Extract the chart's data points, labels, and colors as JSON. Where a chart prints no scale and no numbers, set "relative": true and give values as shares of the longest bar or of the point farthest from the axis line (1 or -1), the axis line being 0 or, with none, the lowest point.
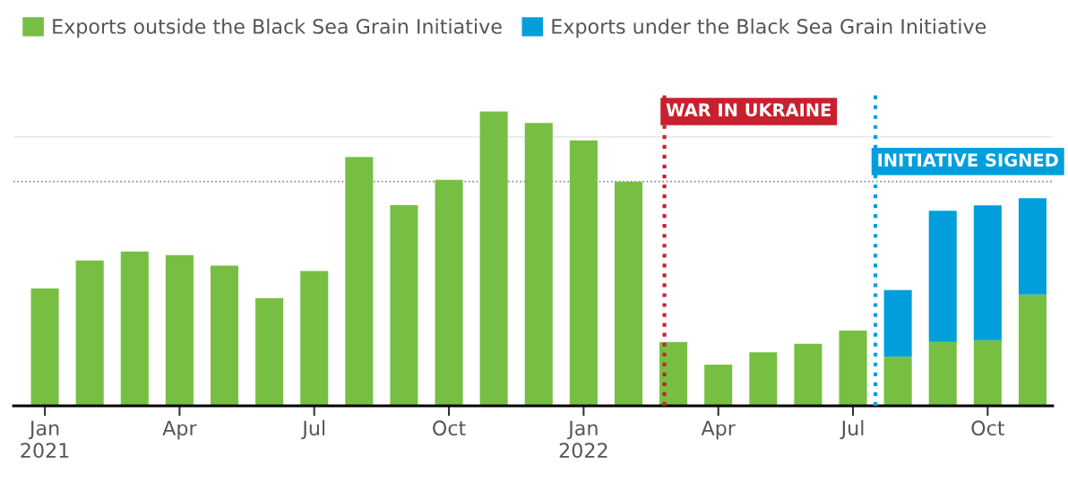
{
  "chart_data": {
    "type": "bar",
    "stacked": true,
    "relative": true,
    "legend": "top left",
    "categories": [
      "Jan\n2021",
      null,
      null,
      "Apr",
      null,
      null,
      "Jul",
      null,
      null,
      "Oct",
      null,
      null,
      "Jan\n2022",
      null,
      null,
      "Apr",
      null,
      null,
      "Jul",
      null,
      null,
      "Oct",
      null
    ],
    "series": [
      {
        "name": "Exports outside the Black Sea Grain Initiative",
        "color": "#76bf43",
        "values": [
          0.399,
          0.494,
          0.524,
          0.512,
          0.476,
          0.366,
          0.458,
          0.845,
          0.682,
          0.768,
          1,
          0.961,
          0.902,
          0.762,
          0.217,
          0.14,
          0.182,
          0.211,
          0.256,
          0.167,
          0.217,
          0.223,
          0.378
        ]
      },
      {
        "name": "Exports under the Black Sea Grain Initiative",
        "color": "#009fdb",
        "values": [
          null,
          null,
          null,
          null,
          null,
          null,
          null,
          null,
          null,
          null,
          null,
          null,
          null,
          null,
          null,
          null,
          null,
          null,
          null,
          0.226,
          0.446,
          0.458,
          0.327
        ]
      }
    ],
    "ref_lines": [
      {
        "axis": "y",
        "value": 0.914,
        "color": "#e8e8e8",
        "line_style": "solid"
      },
      {
        "axis": "y",
        "value": 0.762,
        "color": "#888888",
        "line_style": "dotted"
      }
    ],
    "annotations": [
      "WAR IN UKRAINE",
      "INITIATIVE SIGNED"
    ]
  }
}
